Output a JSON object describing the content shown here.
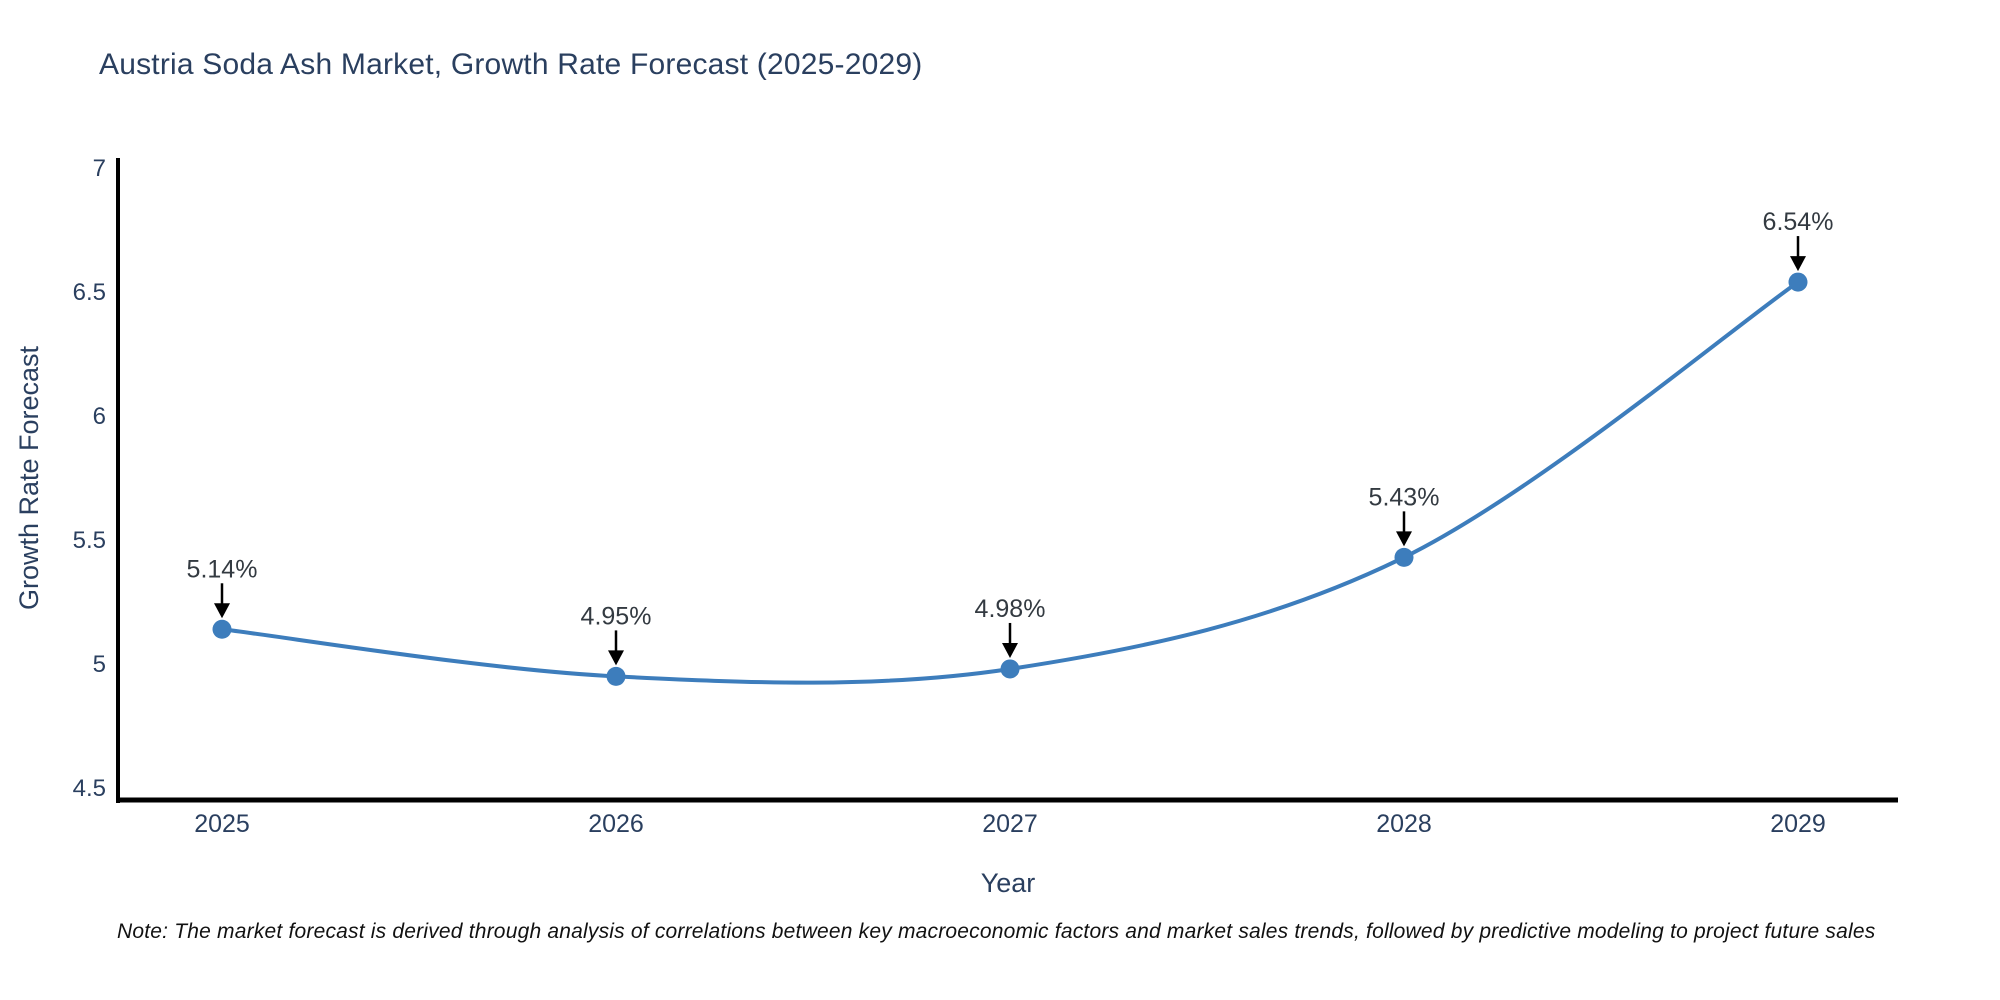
{
  "page": {
    "note": "Note: The market forecast is derived through analysis of correlations between key macroeconomic factors and market sales trends, followed by predictive modeling to project future sales"
  },
  "chart_data": {
    "type": "line",
    "title": "Austria Soda Ash Market, Growth Rate Forecast (2025-2029)",
    "xlabel": "Year",
    "ylabel": "Growth Rate Forecast",
    "categories": [
      "2025",
      "2026",
      "2027",
      "2028",
      "2029"
    ],
    "values": [
      5.14,
      4.95,
      4.98,
      5.43,
      6.54
    ],
    "point_labels": [
      "5.14%",
      "4.95%",
      "4.98%",
      "5.43%",
      "6.54%"
    ],
    "ylim": [
      4.5,
      7
    ],
    "yticks": [
      4.5,
      5,
      5.5,
      6,
      6.5,
      7
    ],
    "ytick_labels": [
      "4.5",
      "5",
      "5.5",
      "6",
      "6.5",
      "7"
    ],
    "grid": false,
    "legend": "none",
    "line_shape": "spline",
    "annotation_style": "text-above-with-down-arrow",
    "colors": {
      "line": "#3d7dbc",
      "marker": "#3d7dbc",
      "axis": "#000000",
      "tick_text": "#2a3f5f",
      "title_text": "#2a3f5f",
      "annotation_text": "#333a41",
      "annotation_arrow": "#000000",
      "note_text": "#111111",
      "background": "#ffffff"
    }
  }
}
